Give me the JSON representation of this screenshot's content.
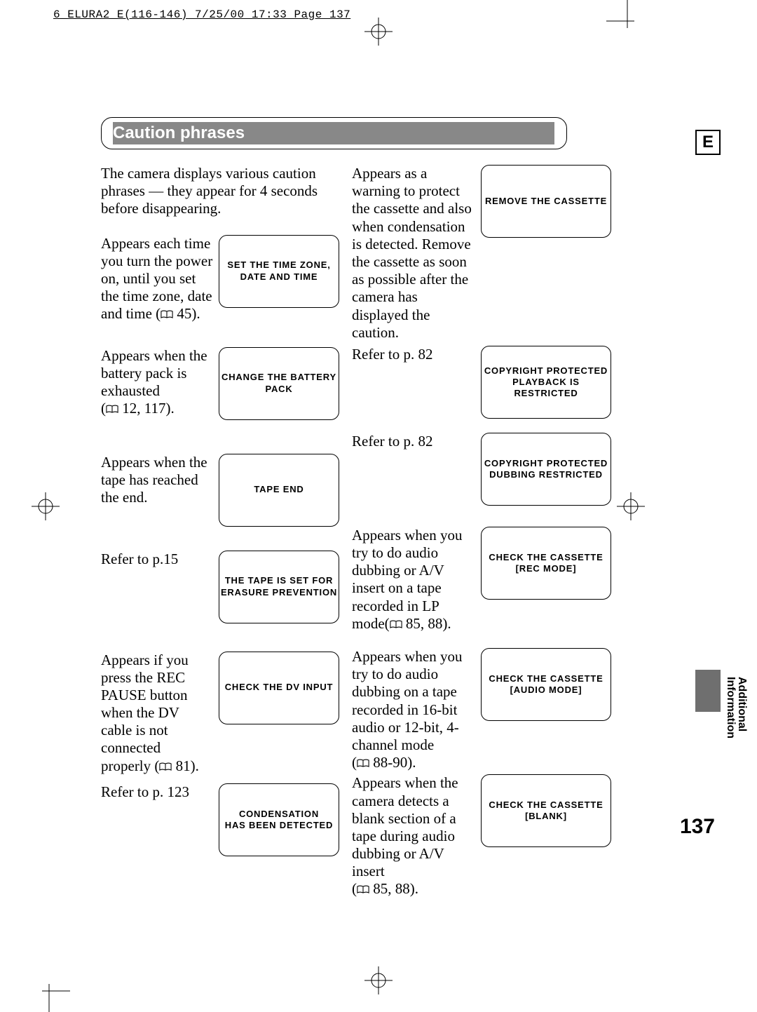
{
  "header": {
    "file_info": "6_ELURA2_E(116-146)  7/25/00 17:33  Page 137"
  },
  "page": {
    "lang": "E",
    "number": "137",
    "section_title": "Caution phrases",
    "intro": "The camera displays various caution phrases — they appear for 4 seconds before disappearing.",
    "side_label": "Additional\nInformation"
  },
  "left_entries": [
    {
      "desc_pre": "Appears each time you turn the power on, until you set the time zone, date and time (",
      "desc_ref": " 45).",
      "box": "SET THE TIME ZONE,\nDATE AND TIME",
      "spacer_after": 34
    },
    {
      "desc_pre": "Appears when the battery pack is exhausted\n(",
      "desc_ref": " 12, 117).",
      "box": "CHANGE THE BATTERY PACK",
      "spacer_after": 48
    },
    {
      "desc_pre": "Appears when the tape has reached the end.",
      "box": "TAPE END",
      "spacer_after": 34
    },
    {
      "desc_pre": "Refer to p.15",
      "box": "THE TAPE IS SET FOR\nERASURE PREVENTION",
      "spacer_after": 40
    },
    {
      "desc_pre": "Appears if you press the REC PAUSE button when the DV cable is not connected properly (",
      "desc_ref": " 81).",
      "box": "CHECK THE DV INPUT",
      "spacer_after": 12
    },
    {
      "desc_pre": "Refer to p. 123",
      "box": "CONDENSATION\nHAS BEEN DETECTED"
    }
  ],
  "right_entries": [
    {
      "desc_pre": "Appears as a warning to protect the cassette and also when condensation is detected. Remove the cassette as soon as possible after the camera has displayed the caution.",
      "box": "REMOVE THE CASSETTE",
      "spacer_after": 6
    },
    {
      "desc_pre": "Refer to p. 82",
      "box": "COPYRIGHT PROTECTED\nPLAYBACK IS RESTRICTED",
      "spacer_after": 20
    },
    {
      "desc_pre": "Refer to p. 82",
      "box": "COPYRIGHT PROTECTED\nDUBBING RESTRICTED",
      "spacer_after": 30
    },
    {
      "desc_pre": "Appears when you try to do audio dubbing or A/V insert on a tape recorded in LP mode(",
      "desc_ref": " 85, 88).",
      "box": "CHECK THE CASSETTE\n[REC MODE]",
      "spacer_after": 22
    },
    {
      "desc_pre": "Appears when you try to do audio dubbing on a tape recorded in 16-bit audio or 12-bit, 4-channel mode\n(",
      "desc_ref": " 88-90).",
      "box": "CHECK THE CASSETTE\n[AUDIO MODE]",
      "spacer_after": 4
    },
    {
      "desc_pre": "Appears when the camera detects a blank section of a tape during audio dubbing or A/V insert\n(",
      "desc_ref": " 85, 88).",
      "box": "CHECK THE CASSETTE\n[BLANK]"
    }
  ]
}
